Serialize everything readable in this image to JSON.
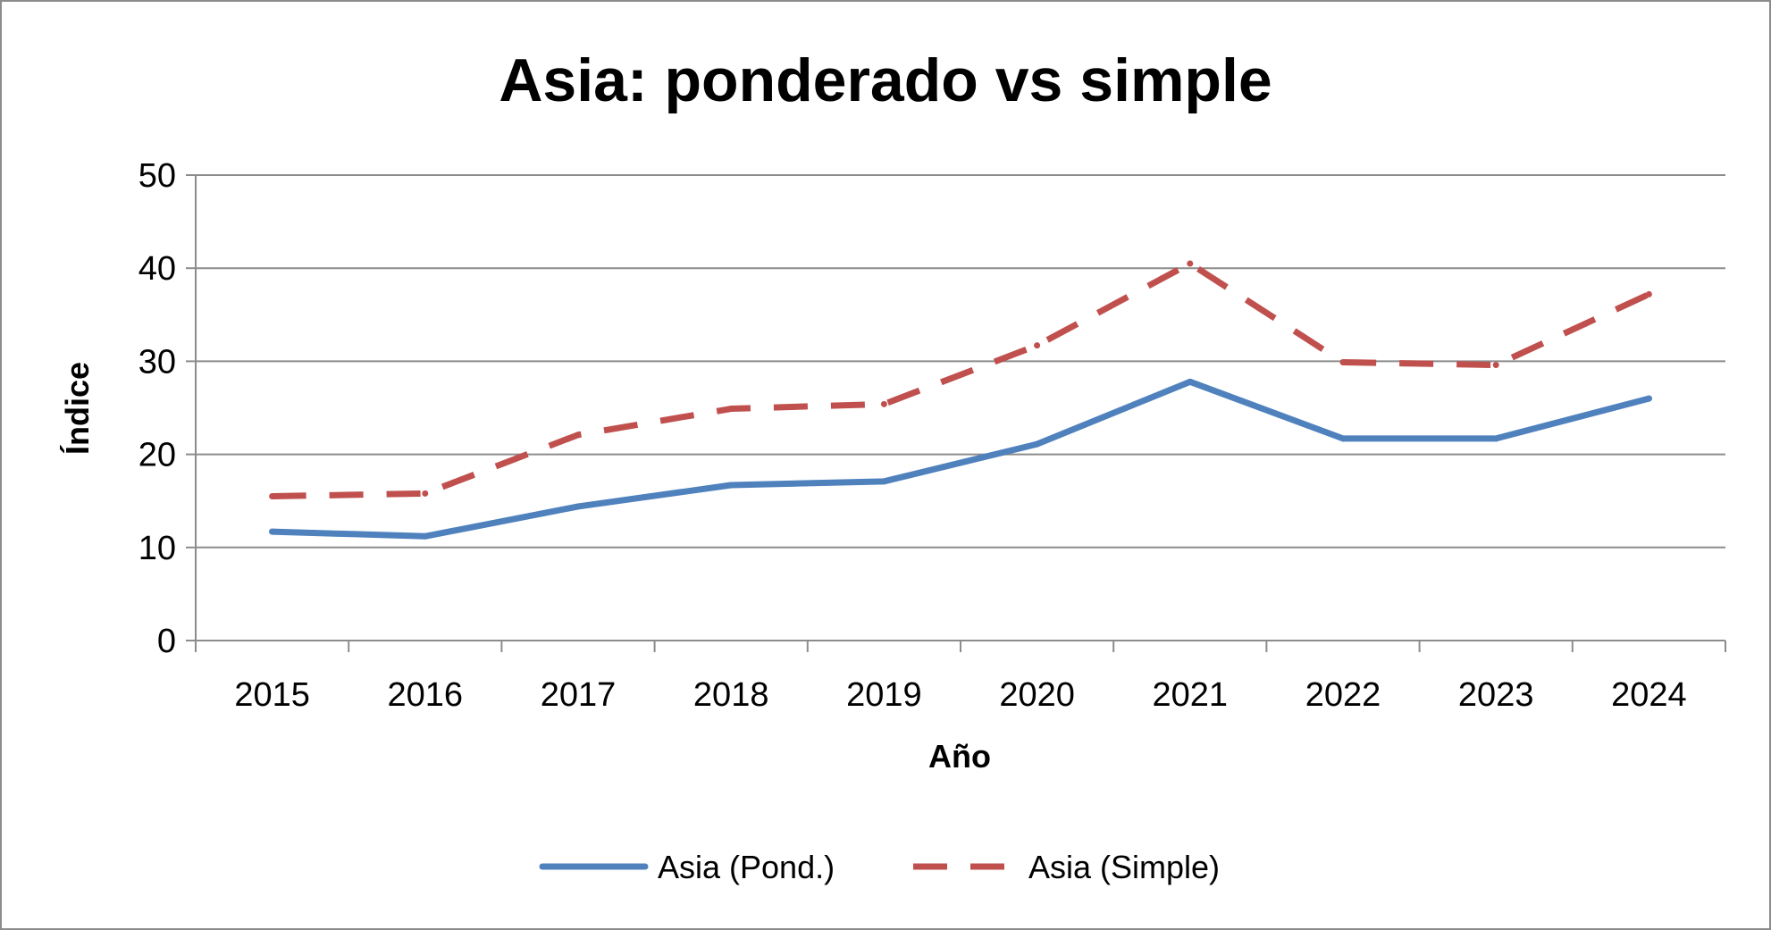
{
  "chart_data": {
    "type": "line",
    "title": "Asia: ponderado vs simple",
    "xlabel": "Año",
    "ylabel": "Índice",
    "categories": [
      "2015",
      "2016",
      "2017",
      "2018",
      "2019",
      "2020",
      "2021",
      "2022",
      "2023",
      "2024"
    ],
    "ylim": [
      0,
      50
    ],
    "yticks": [
      "0",
      "10",
      "20",
      "30",
      "40",
      "50"
    ],
    "grid": true,
    "legend_position": "bottom",
    "series": [
      {
        "name": "Asia (Pond.)",
        "values": [
          11.7,
          11.2,
          14.4,
          16.7,
          17.1,
          21.1,
          27.8,
          21.7,
          21.7,
          26.0
        ],
        "color": "#4f81bd",
        "style": "solid"
      },
      {
        "name": "Asia (Simple)",
        "values": [
          15.5,
          15.8,
          22.1,
          24.9,
          25.4,
          31.7,
          40.5,
          29.9,
          29.6,
          37.2
        ],
        "color": "#c0504d",
        "style": "dashed"
      }
    ]
  }
}
